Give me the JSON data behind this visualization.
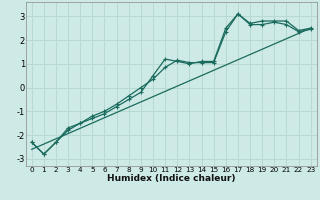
{
  "title": "",
  "xlabel": "Humidex (Indice chaleur)",
  "background_color": "#ceeae6",
  "grid_color": "#b8d8d4",
  "line_color": "#1a6b5e",
  "xlim": [
    -0.5,
    23.5
  ],
  "ylim": [
    -3.3,
    3.6
  ],
  "xticks": [
    0,
    1,
    2,
    3,
    4,
    5,
    6,
    7,
    8,
    9,
    10,
    11,
    12,
    13,
    14,
    15,
    16,
    17,
    18,
    19,
    20,
    21,
    22,
    23
  ],
  "yticks": [
    -3,
    -2,
    -1,
    0,
    1,
    2,
    3
  ],
  "series1_y": [
    -2.3,
    -2.8,
    -2.3,
    -1.7,
    -1.5,
    -1.3,
    -1.1,
    -0.8,
    -0.5,
    -0.2,
    0.5,
    1.2,
    1.1,
    1.0,
    1.1,
    1.1,
    2.5,
    3.1,
    2.7,
    2.8,
    2.8,
    2.8,
    2.4,
    2.5
  ],
  "series2_y": [
    -2.3,
    -2.8,
    -2.3,
    -1.8,
    -1.5,
    -1.2,
    -1.0,
    -0.7,
    -0.35,
    0.0,
    0.35,
    0.85,
    1.15,
    1.05,
    1.05,
    1.05,
    2.35,
    3.1,
    2.65,
    2.65,
    2.75,
    2.65,
    2.35,
    2.45
  ],
  "trend_x": [
    0,
    23
  ],
  "trend_y": [
    -2.6,
    2.5
  ]
}
